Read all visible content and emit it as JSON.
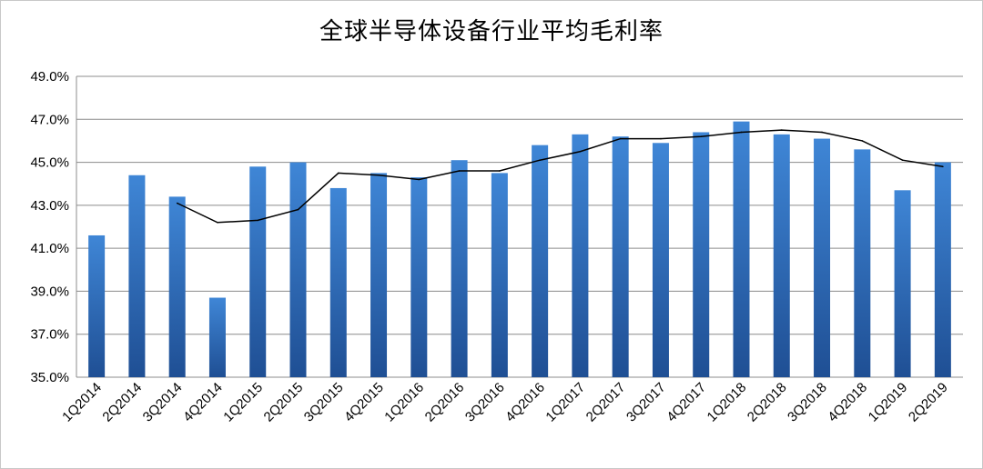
{
  "chart_data": {
    "type": "bar",
    "title": "全球半导体设备行业平均毛利率",
    "xlabel": "",
    "ylabel": "",
    "ylim": [
      35.0,
      49.0
    ],
    "yticks": [
      "35.0%",
      "37.0%",
      "39.0%",
      "41.0%",
      "43.0%",
      "45.0%",
      "47.0%",
      "49.0%"
    ],
    "grid": true,
    "legend": "none",
    "categories": [
      "1Q2014",
      "2Q2014",
      "3Q2014",
      "4Q2014",
      "1Q2015",
      "2Q2015",
      "3Q2015",
      "4Q2015",
      "1Q2016",
      "2Q2016",
      "3Q2016",
      "4Q2016",
      "1Q2017",
      "2Q2017",
      "3Q2017",
      "4Q2017",
      "1Q2018",
      "2Q2018",
      "3Q2018",
      "4Q2018",
      "1Q2019",
      "2Q2019"
    ],
    "series": [
      {
        "type": "bar",
        "color": "#2f6fc0",
        "values": [
          41.6,
          44.4,
          43.4,
          38.7,
          44.8,
          45.0,
          43.8,
          44.5,
          44.3,
          45.1,
          44.5,
          45.8,
          46.3,
          46.2,
          45.9,
          46.4,
          46.9,
          46.3,
          46.1,
          45.6,
          43.7,
          45.0
        ]
      },
      {
        "type": "line",
        "color": "#000000",
        "values": [
          null,
          null,
          43.1,
          42.2,
          42.3,
          42.8,
          44.5,
          44.4,
          44.2,
          44.6,
          44.6,
          45.1,
          45.5,
          46.1,
          46.1,
          46.2,
          46.4,
          46.5,
          46.4,
          46.0,
          45.1,
          44.8
        ]
      }
    ]
  }
}
